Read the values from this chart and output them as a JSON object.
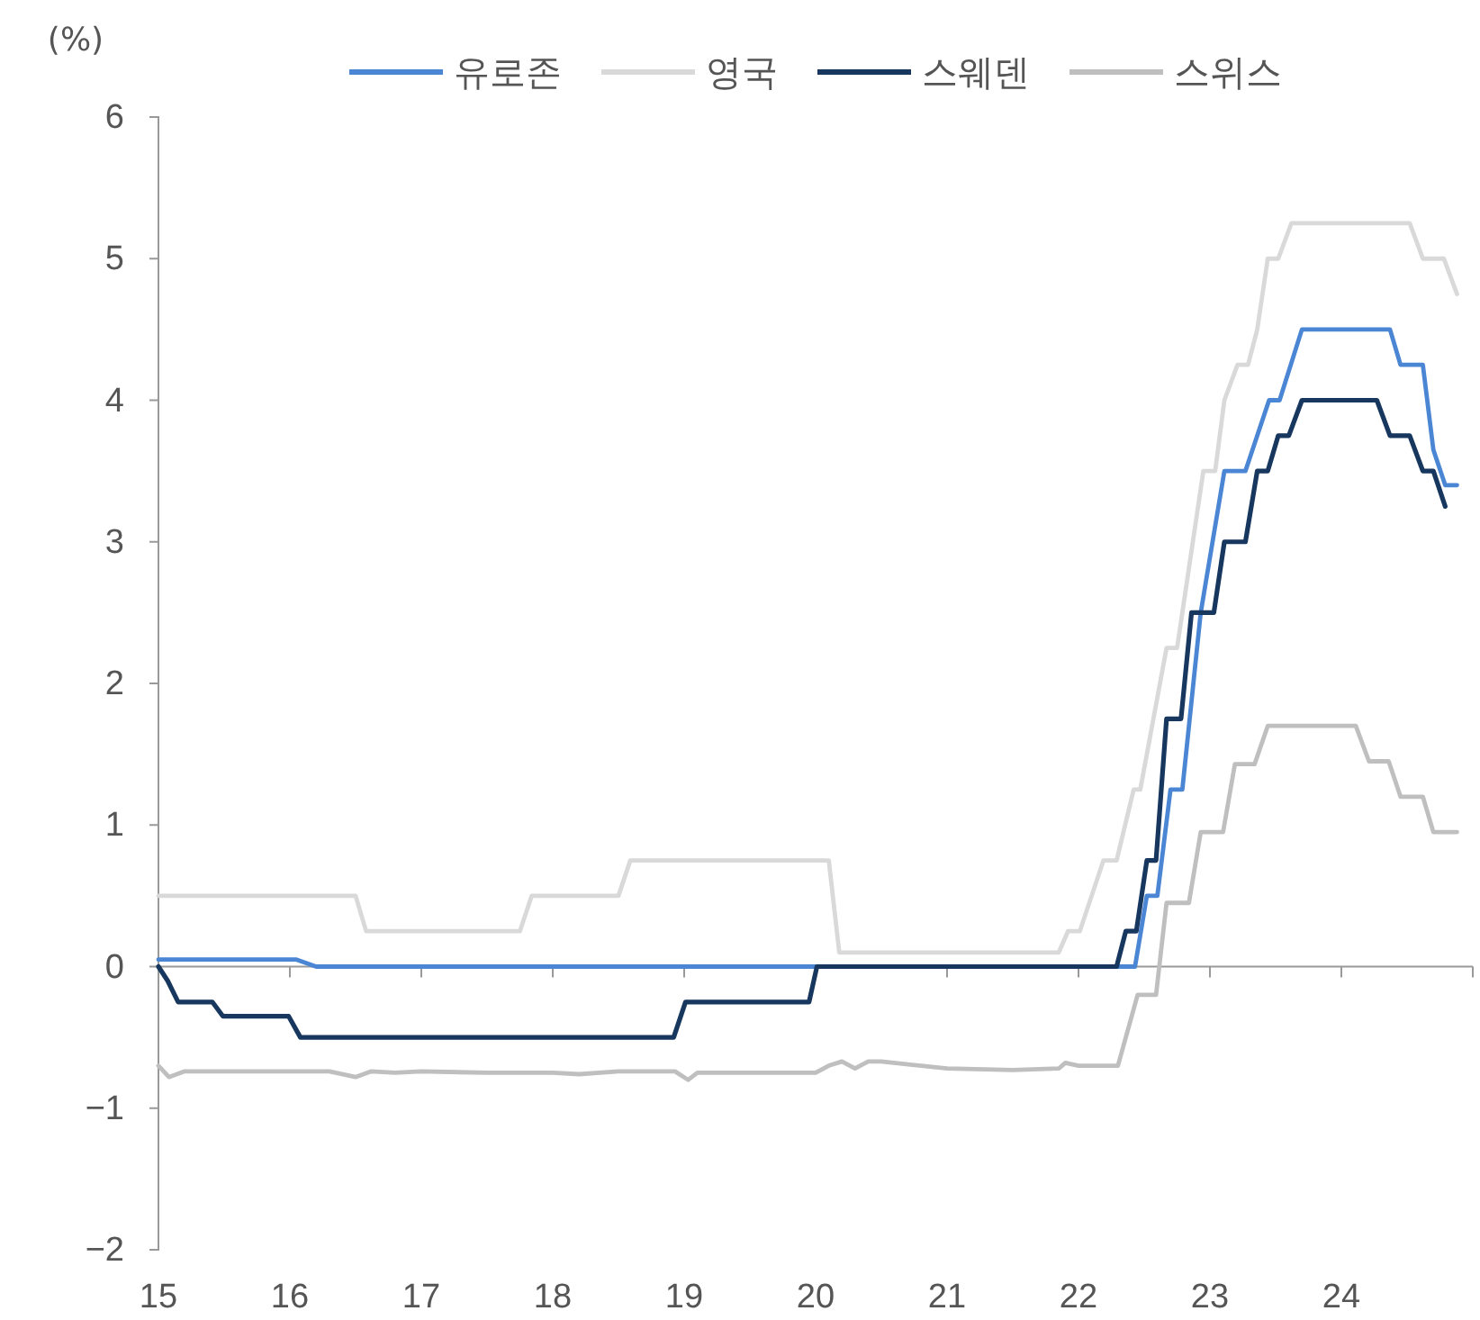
{
  "chart_data": {
    "type": "line",
    "ylabel": "(%)",
    "xlim": [
      15,
      25
    ],
    "ylim": [
      -2,
      6
    ],
    "xticks": [
      15,
      16,
      17,
      18,
      19,
      20,
      21,
      22,
      23,
      24,
      {
        "value": 25,
        "label": null
      }
    ],
    "yticks": [
      {
        "value": -2,
        "label": "−2"
      },
      {
        "value": -1,
        "label": "−1"
      },
      0,
      1,
      2,
      3,
      4,
      5,
      6
    ],
    "legend": "top",
    "line_style": "solid",
    "marker": "none",
    "series": [
      {
        "name": "유로존",
        "color": "#4a86d4",
        "x": [
          15,
          16.05,
          16.2,
          22.43,
          22.52,
          22.6,
          22.7,
          22.79,
          22.93,
          23.11,
          23.27,
          23.45,
          23.53,
          23.7,
          24.37,
          24.45,
          24.62,
          24.7,
          24.79,
          24.88
        ],
        "values": [
          0.05,
          0.05,
          0,
          0,
          0.5,
          0.5,
          1.25,
          1.25,
          2.5,
          3.5,
          3.5,
          4,
          4,
          4.5,
          4.5,
          4.25,
          4.25,
          3.65,
          3.4,
          3.4
        ]
      },
      {
        "name": "영국",
        "color": "#d9d9d9",
        "x": [
          15,
          16.5,
          16.58,
          17.75,
          17.84,
          18.5,
          18.59,
          20.1,
          20.18,
          21.85,
          21.92,
          22.01,
          22.19,
          22.29,
          22.42,
          22.47,
          22.67,
          22.75,
          22.95,
          23.04,
          23.11,
          23.21,
          23.29,
          23.36,
          23.44,
          23.52,
          23.62,
          24.52,
          24.62,
          24.78,
          24.88
        ],
        "values": [
          0.5,
          0.5,
          0.25,
          0.25,
          0.5,
          0.5,
          0.75,
          0.75,
          0.1,
          0.1,
          0.25,
          0.25,
          0.75,
          0.75,
          1.25,
          1.25,
          2.25,
          2.25,
          3.5,
          3.5,
          4,
          4.25,
          4.25,
          4.5,
          5,
          5,
          5.25,
          5.25,
          5,
          5,
          4.75
        ]
      },
      {
        "name": "스웨덴",
        "color": "#17375e",
        "x": [
          15,
          15.07,
          15.15,
          15.41,
          15.49,
          15.99,
          16.08,
          18.92,
          19.01,
          19.95,
          20.01,
          22.29,
          22.36,
          22.44,
          22.52,
          22.59,
          22.67,
          22.78,
          22.86,
          23.03,
          23.11,
          23.27,
          23.36,
          23.44,
          23.52,
          23.6,
          23.7,
          24.27,
          24.37,
          24.52,
          24.62,
          24.7,
          24.79
        ],
        "values": [
          0,
          -0.1,
          -0.25,
          -0.25,
          -0.35,
          -0.35,
          -0.5,
          -0.5,
          -0.25,
          -0.25,
          0,
          0,
          0.25,
          0.25,
          0.75,
          0.75,
          1.75,
          1.75,
          2.5,
          2.5,
          3,
          3,
          3.5,
          3.5,
          3.75,
          3.75,
          4,
          4,
          3.75,
          3.75,
          3.5,
          3.5,
          3.25
        ]
      },
      {
        "name": "스위스",
        "color": "#bfbfbf",
        "x": [
          15,
          15.08,
          15.2,
          15.5,
          16,
          16.3,
          16.5,
          16.62,
          16.8,
          17,
          17.5,
          18,
          18.2,
          18.5,
          18.93,
          19.03,
          19.1,
          19.5,
          20,
          20.1,
          20.2,
          20.3,
          20.4,
          20.5,
          21,
          21.5,
          21.85,
          21.9,
          22,
          22.2,
          22.3,
          22.45,
          22.59,
          22.67,
          22.84,
          22.93,
          23.1,
          23.19,
          23.34,
          23.44,
          24.11,
          24.21,
          24.36,
          24.45,
          24.62,
          24.7,
          24.88
        ],
        "values": [
          -0.7,
          -0.78,
          -0.74,
          -0.74,
          -0.74,
          -0.74,
          -0.78,
          -0.74,
          -0.75,
          -0.74,
          -0.75,
          -0.75,
          -0.76,
          -0.74,
          -0.74,
          -0.8,
          -0.75,
          -0.75,
          -0.75,
          -0.7,
          -0.67,
          -0.72,
          -0.67,
          -0.67,
          -0.72,
          -0.73,
          -0.72,
          -0.68,
          -0.7,
          -0.7,
          -0.7,
          -0.2,
          -0.2,
          0.45,
          0.45,
          0.95,
          0.95,
          1.43,
          1.43,
          1.7,
          1.7,
          1.45,
          1.45,
          1.2,
          1.2,
          0.95,
          0.95
        ]
      }
    ]
  }
}
